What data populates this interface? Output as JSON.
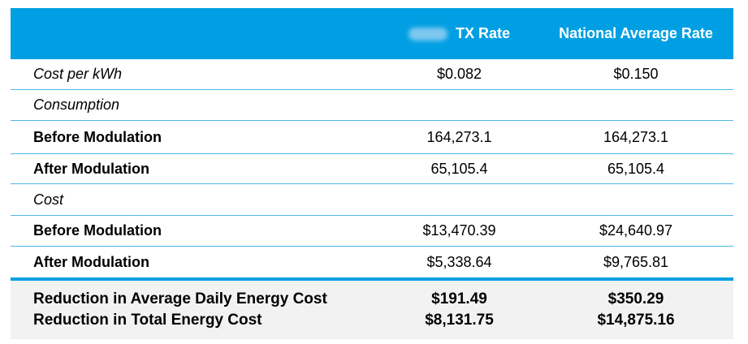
{
  "header": {
    "col1_label": "TX Rate",
    "col2_label": "National Average Rate"
  },
  "rows": [
    {
      "label": "Cost per kWh",
      "tx": "$0.082",
      "national": "$0.150"
    },
    {
      "label": "Consumption",
      "tx": "",
      "national": ""
    },
    {
      "label": "Before Modulation",
      "tx": "164,273.1",
      "national": "164,273.1"
    },
    {
      "label": "After Modulation",
      "tx": "65,105.4",
      "national": "65,105.4"
    },
    {
      "label": "Cost",
      "tx": "",
      "national": ""
    },
    {
      "label": "Before Modulation",
      "tx": "$13,470.39",
      "national": "$24,640.97"
    },
    {
      "label": "After Modulation",
      "tx": "$5,338.64",
      "national": "$9,765.81"
    }
  ],
  "summary": [
    {
      "label": "Reduction in Average Daily Energy Cost",
      "tx": "$191.49",
      "national": "$350.29"
    },
    {
      "label": "Reduction in Total Energy Cost",
      "tx": "$8,131.75",
      "national": "$14,875.16"
    }
  ],
  "colors": {
    "header_bg": "#009fe3",
    "border": "#4fb6e6",
    "summary_bg": "#f2f2f2"
  }
}
